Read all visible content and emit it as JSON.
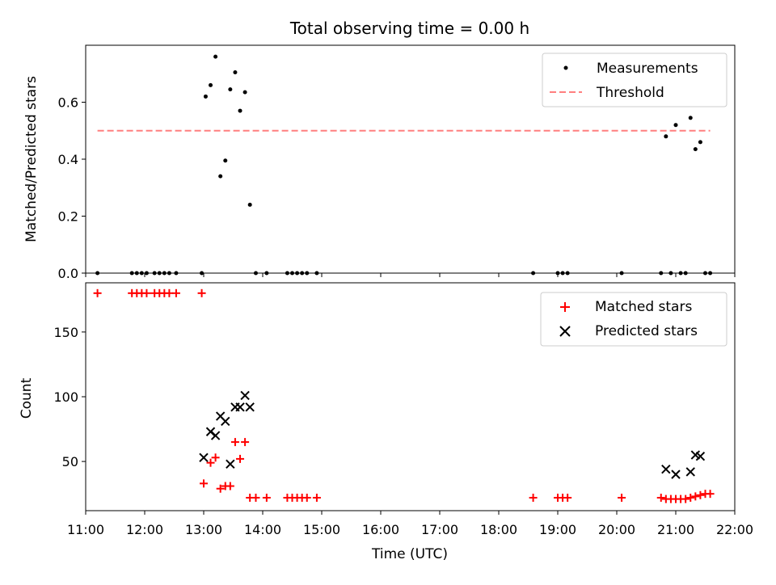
{
  "chart_data": [
    {
      "type": "scatter",
      "title": "Total observing time = 0.00 h",
      "xlabel": "",
      "ylabel": "Matched/Predicted stars",
      "xlim": [
        "11:00",
        "22:00"
      ],
      "ylim": [
        0,
        0.8
      ],
      "yticks": [
        "0.0",
        "0.2",
        "0.4",
        "0.6"
      ],
      "legend_position": "top-right",
      "series": [
        {
          "name": "Measurements",
          "marker": "dot",
          "color": "#000000",
          "x": [
            "11:12",
            "11:47",
            "11:52",
            "11:57",
            "12:02",
            "12:10",
            "12:15",
            "12:20",
            "12:25",
            "12:32",
            "12:58",
            "13:02",
            "13:07",
            "13:12",
            "13:17",
            "13:22",
            "13:27",
            "13:32",
            "13:37",
            "13:42",
            "13:47",
            "13:53",
            "14:04",
            "14:25",
            "14:30",
            "14:35",
            "14:40",
            "14:45",
            "14:55",
            "18:35",
            "19:00",
            "19:05",
            "19:10",
            "20:05",
            "20:45",
            "20:50",
            "20:55",
            "21:00",
            "21:05",
            "21:10",
            "21:15",
            "21:20",
            "21:25",
            "21:30",
            "21:35"
          ],
          "y": [
            0,
            0,
            0,
            0,
            0,
            0,
            0,
            0,
            0,
            0,
            0,
            0.62,
            0.66,
            0.76,
            0.34,
            0.395,
            0.645,
            0.705,
            0.57,
            0.635,
            0.24,
            0,
            0,
            0,
            0,
            0,
            0,
            0,
            0,
            0,
            0,
            0,
            0,
            0,
            0,
            0.48,
            0,
            0.52,
            0,
            0,
            0.545,
            0.435,
            0.46,
            0,
            0
          ]
        },
        {
          "name": "Threshold",
          "marker": "dashed-line",
          "color": "#ff7f7f",
          "x": [
            "11:12",
            "21:35"
          ],
          "y": [
            0.5,
            0.5
          ]
        }
      ]
    },
    {
      "type": "scatter",
      "title": "",
      "xlabel": "Time (UTC)",
      "ylabel": "Count",
      "xlim": [
        "11:00",
        "22:00"
      ],
      "ylim": [
        12,
        188
      ],
      "yticks": [
        "50",
        "100",
        "150"
      ],
      "xticks": [
        "11:00",
        "12:00",
        "13:00",
        "14:00",
        "15:00",
        "16:00",
        "17:00",
        "18:00",
        "19:00",
        "20:00",
        "21:00",
        "22:00"
      ],
      "legend_position": "top-right",
      "series": [
        {
          "name": "Matched stars",
          "marker": "plus",
          "color": "#ff0000",
          "x": [
            "11:12",
            "11:47",
            "11:52",
            "11:57",
            "12:02",
            "12:10",
            "12:15",
            "12:20",
            "12:25",
            "12:32",
            "12:58",
            "13:00",
            "13:07",
            "13:12",
            "13:17",
            "13:22",
            "13:27",
            "13:32",
            "13:37",
            "13:42",
            "13:47",
            "13:53",
            "14:04",
            "14:25",
            "14:30",
            "14:35",
            "14:40",
            "14:45",
            "14:55",
            "18:35",
            "19:00",
            "19:05",
            "19:10",
            "20:05",
            "20:45",
            "20:50",
            "20:55",
            "21:00",
            "21:05",
            "21:10",
            "21:15",
            "21:20",
            "21:25",
            "21:30",
            "21:35"
          ],
          "y": [
            180,
            180,
            180,
            180,
            180,
            180,
            180,
            180,
            180,
            180,
            180,
            33,
            49,
            53,
            29,
            31,
            31,
            65,
            52,
            65,
            22,
            22,
            22,
            22,
            22,
            22,
            22,
            22,
            22,
            22,
            22,
            22,
            22,
            22,
            22,
            21,
            21,
            21,
            21,
            21,
            22,
            23,
            24,
            25,
            25
          ]
        },
        {
          "name": "Predicted stars",
          "marker": "x",
          "color": "#000000",
          "x": [
            "13:00",
            "13:07",
            "13:12",
            "13:17",
            "13:22",
            "13:27",
            "13:32",
            "13:37",
            "13:42",
            "13:47",
            "20:50",
            "21:00",
            "21:15",
            "21:20",
            "21:25"
          ],
          "y": [
            53,
            73,
            70,
            85,
            81,
            48,
            92,
            92,
            101,
            92,
            44,
            40,
            42,
            55,
            54
          ]
        }
      ]
    }
  ]
}
